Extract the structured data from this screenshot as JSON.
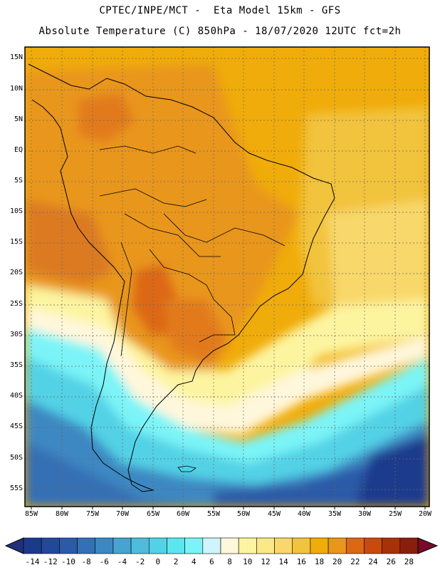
{
  "header": {
    "line1": "CPTEC/INPE/MCT -  Eta Model 15km - GFS",
    "line2": "Absolute Temperature (C) 850hPa - 18/07/2020 12UTC fct=2h"
  },
  "axes": {
    "lat_labels": [
      "15N",
      "10N",
      "5N",
      "EQ",
      "5S",
      "10S",
      "15S",
      "20S",
      "25S",
      "30S",
      "35S",
      "40S",
      "45S",
      "50S",
      "55S"
    ],
    "lon_labels": [
      "85W",
      "80W",
      "75W",
      "70W",
      "65W",
      "60W",
      "55W",
      "50W",
      "45W",
      "40W",
      "35W",
      "30W",
      "25W",
      "20W"
    ]
  },
  "colorbar": {
    "labels": [
      "-14",
      "-12",
      "-10",
      "-8",
      "-6",
      "-4",
      "-2",
      "0",
      "2",
      "4",
      "6",
      "8",
      "10",
      "12",
      "14",
      "16",
      "18",
      "20",
      "22",
      "24",
      "26",
      "28"
    ],
    "colors": [
      "#1c3a8c",
      "#23489a",
      "#2c5aa8",
      "#3470b5",
      "#3c88c2",
      "#47a3cf",
      "#4fbcdb",
      "#52d2e6",
      "#5ce6ef",
      "#7cf4f7",
      "#cff4fb",
      "#fff7dc",
      "#fdf4a0",
      "#fbe987",
      "#f8d86a",
      "#f2c33c",
      "#f0ac0a",
      "#e9961c",
      "#dc6814",
      "#c84a0c",
      "#a83208",
      "#8b1d0c"
    ],
    "under_color": "#22307a",
    "over_color": "#7a0a2a"
  }
}
